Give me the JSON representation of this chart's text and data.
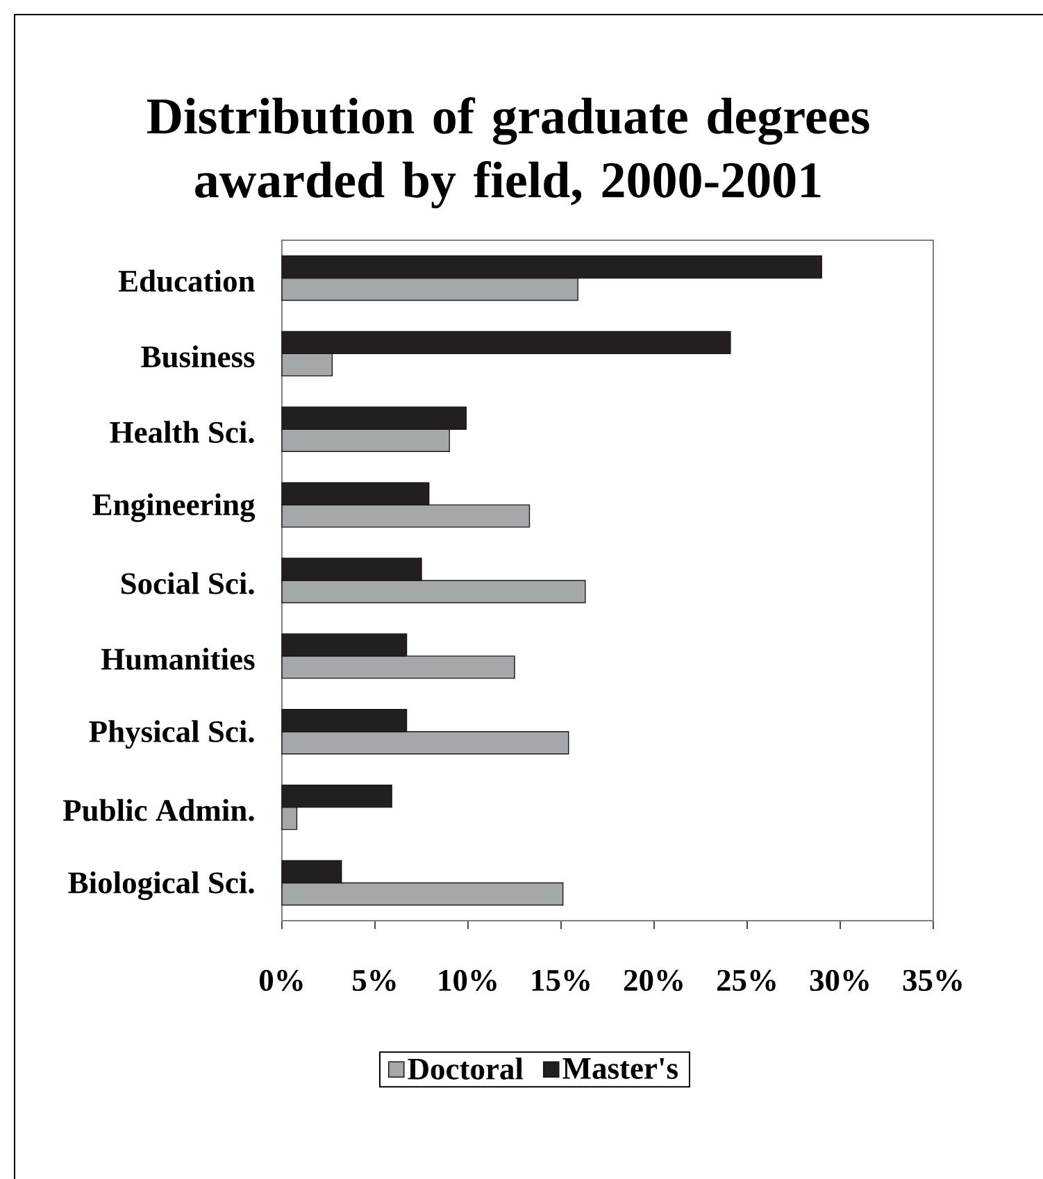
{
  "chart_data": {
    "type": "bar",
    "orientation": "horizontal",
    "title": "Distribution of graduate degrees awarded by field, 2000-2001",
    "categories": [
      "Education",
      "Business",
      "Health Sci.",
      "Engineering",
      "Social Sci.",
      "Humanities",
      "Physical Sci.",
      "Public Admin.",
      "Biological Sci."
    ],
    "series": [
      {
        "name": "Doctoral",
        "color": "#a5a8aa",
        "values": [
          15.9,
          2.7,
          9.0,
          13.3,
          16.3,
          12.5,
          15.4,
          0.8,
          15.1
        ]
      },
      {
        "name": "Master's",
        "color": "#231f20",
        "values": [
          29.0,
          24.1,
          9.9,
          7.9,
          7.5,
          6.7,
          6.7,
          5.9,
          3.2
        ]
      }
    ],
    "xlim": [
      0,
      35
    ],
    "xticks": [
      {
        "value": 0,
        "label": "0%"
      },
      {
        "value": 5,
        "label": "5%"
      },
      {
        "value": 10,
        "label": "10%"
      },
      {
        "value": 15,
        "label": "15%"
      },
      {
        "value": 20,
        "label": "20%"
      },
      {
        "value": 25,
        "label": "25%"
      },
      {
        "value": 30,
        "label": "30%"
      },
      {
        "value": 35,
        "label": "35%"
      }
    ],
    "legend": "bottom"
  }
}
